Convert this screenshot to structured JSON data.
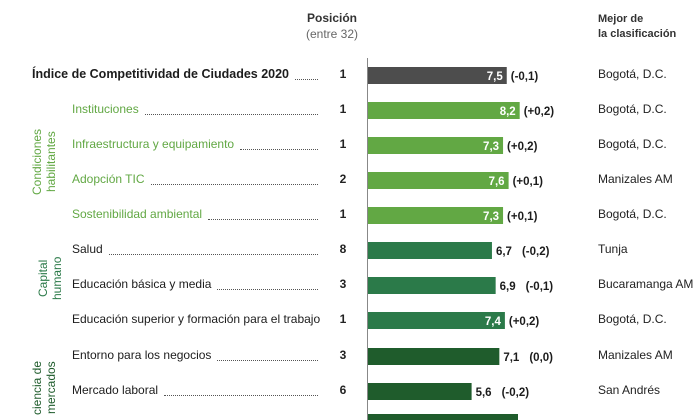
{
  "header": {
    "position_title": "Posición",
    "position_subtitle": "(entre 32)",
    "best_title_line1": "Mejor de",
    "best_title_line2": "la clasificación"
  },
  "groups": [
    {
      "name": "Condiciones habilitantes",
      "line1": "Condiciones",
      "line2": "habilitantes",
      "color": "#62a844"
    },
    {
      "name": "Capital humano",
      "line1": "Capital",
      "line2": "humano",
      "color": "#2b7a49"
    },
    {
      "name": "Eficiencia de los mercados",
      "line1": "ciencia de",
      "line2": "mercados",
      "color": "#1f5c2c"
    }
  ],
  "chart_data": {
    "type": "bar",
    "orientation": "horizontal",
    "title": "Índice de Competitividad de Ciudades 2020",
    "xlim": [
      0,
      10
    ],
    "categories": [
      "Índice de Competitividad de Ciudades 2020",
      "Instituciones",
      "Infraestructura y equipamiento",
      "Adopción TIC",
      "Sostenibilidad ambiental",
      "Salud",
      "Educación básica y media",
      "Educación superior y formación para el trabajo",
      "Entorno para los negocios",
      "Mercado laboral"
    ],
    "values": [
      7.5,
      8.2,
      7.3,
      7.6,
      7.3,
      6.7,
      6.9,
      7.4,
      7.1,
      5.6
    ],
    "value_labels": [
      "7,5",
      "8,2",
      "7,3",
      "7,6",
      "7,3",
      "6,7",
      "6,9",
      "7,4",
      "7,1",
      "5,6"
    ],
    "changes": [
      "(-0,1)",
      "(+0,2)",
      "(+0,2)",
      "(+0,1)",
      "(+0,1)",
      "(-0,2)",
      "(-0,1)",
      "(+0,2)",
      "(0,0)",
      "(-0,2)"
    ],
    "positions": [
      "1",
      "1",
      "1",
      "2",
      "1",
      "8",
      "3",
      "1",
      "3",
      "6"
    ],
    "best": [
      "Bogotá, D.C.",
      "Bogotá, D.C.",
      "Bogotá, D.C.",
      "Manizales AM",
      "Bogotá, D.C.",
      "Tunja",
      "Bucaramanga AM",
      "Bogotá, D.C.",
      "Manizales AM",
      "San Andrés"
    ],
    "row_group": [
      "total",
      "cond",
      "cond",
      "cond",
      "cond",
      "cap",
      "cap",
      "cap",
      "efi",
      "efi"
    ],
    "colors": {
      "total": "#4d4d4d",
      "cond": "#62a844",
      "cap": "#2b7a49",
      "efi": "#1f5c2c"
    }
  }
}
